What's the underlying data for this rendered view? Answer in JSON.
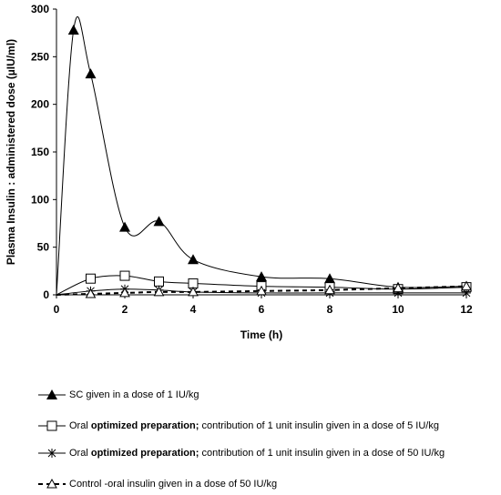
{
  "chart_data": {
    "type": "line",
    "title": "",
    "xlabel": "Time (h)",
    "ylabel": "Plasma Insulin : administered dose (µIU/ml)",
    "xlim": [
      0,
      12
    ],
    "ylim": [
      0,
      300
    ],
    "xticks": [
      "0",
      "2",
      "4",
      "6",
      "8",
      "10",
      "12"
    ],
    "yticks": [
      "0",
      "50",
      "100",
      "150",
      "200",
      "250",
      "300"
    ],
    "grid": false,
    "legend_position": "bottom",
    "series": [
      {
        "name": "SC given in a dose of 1 IU/kg",
        "legend_parts": [
          {
            "text": "SC given in a dose of 1 IU/kg",
            "bold": false
          }
        ],
        "marker": "filled-triangle",
        "line": "solid",
        "x": [
          0,
          0.5,
          1,
          2,
          3,
          4,
          6,
          8,
          10,
          12
        ],
        "y": [
          0,
          278,
          232,
          71,
          77,
          37,
          19,
          17,
          8,
          9
        ]
      },
      {
        "name": "Oral optimized preparation; contribution of 1 unit insulin given in a dose of 5 IU/kg",
        "legend_parts": [
          {
            "text": "Oral ",
            "bold": false
          },
          {
            "text": "optimized preparation;",
            "bold": true
          },
          {
            "text": " contribution of 1 unit insulin given in a dose of 5 IU/kg",
            "bold": false
          }
        ],
        "marker": "open-square",
        "line": "solid",
        "x": [
          0,
          1,
          2,
          3,
          4,
          6,
          8,
          10,
          12
        ],
        "y": [
          0,
          17,
          20,
          14,
          12,
          9,
          8,
          6,
          8
        ]
      },
      {
        "name": "Oral optimized preparation; contribution of 1 unit insulin given in a dose of 50 IU/kg",
        "legend_parts": [
          {
            "text": "Oral ",
            "bold": false
          },
          {
            "text": "optimized preparation;",
            "bold": true
          },
          {
            "text": " contribution of 1 unit insulin given in a dose of 50 IU/kg",
            "bold": false
          }
        ],
        "marker": "asterisk",
        "line": "solid",
        "x": [
          0,
          1,
          2,
          3,
          4,
          6,
          8,
          10,
          12
        ],
        "y": [
          0,
          4,
          6,
          5,
          3,
          2,
          2,
          2,
          2
        ]
      },
      {
        "name": "Control -oral insulin given in a dose of 50 IU/kg",
        "legend_parts": [
          {
            "text": "Control -oral insulin given in a dose of 50 IU/kg",
            "bold": false
          }
        ],
        "marker": "open-triangle",
        "line": "dashed",
        "x": [
          0,
          1,
          2,
          3,
          4,
          6,
          8,
          10,
          12
        ],
        "y": [
          0,
          1,
          2,
          3,
          3,
          4,
          5,
          7,
          9
        ]
      }
    ]
  }
}
